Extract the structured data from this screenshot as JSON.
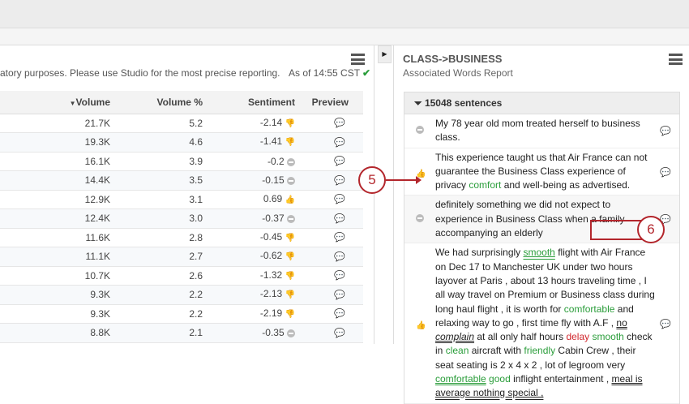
{
  "left": {
    "note": "atory purposes. Please use Studio for the most precise reporting.",
    "as_of": "As of 14:55 CST",
    "columns": [
      "Volume",
      "Volume %",
      "Sentiment",
      "Preview"
    ],
    "rows": [
      {
        "volume": "21.7K",
        "pct": "5.2",
        "sent": "-2.14",
        "s": "neg"
      },
      {
        "volume": "19.3K",
        "pct": "4.6",
        "sent": "-1.41",
        "s": "neg"
      },
      {
        "volume": "16.1K",
        "pct": "3.9",
        "sent": "-0.2",
        "s": "neu"
      },
      {
        "volume": "14.4K",
        "pct": "3.5",
        "sent": "-0.15",
        "s": "neu"
      },
      {
        "volume": "12.9K",
        "pct": "3.1",
        "sent": "0.69",
        "s": "pos"
      },
      {
        "volume": "12.4K",
        "pct": "3.0",
        "sent": "-0.37",
        "s": "neu"
      },
      {
        "volume": "11.6K",
        "pct": "2.8",
        "sent": "-0.45",
        "s": "neg"
      },
      {
        "volume": "11.1K",
        "pct": "2.7",
        "sent": "-0.62",
        "s": "neg"
      },
      {
        "volume": "10.7K",
        "pct": "2.6",
        "sent": "-1.32",
        "s": "neg"
      },
      {
        "volume": "9.3K",
        "pct": "2.2",
        "sent": "-2.13",
        "s": "neg"
      },
      {
        "volume": "9.3K",
        "pct": "2.2",
        "sent": "-2.19",
        "s": "neg"
      },
      {
        "volume": "8.8K",
        "pct": "2.1",
        "sent": "-0.35",
        "s": "neu"
      }
    ]
  },
  "right": {
    "title": "CLASS->BUSINESS",
    "subtitle": "Associated Words Report",
    "count": "15048 sentences",
    "s1": "My 78 year old mom treated herself to business class.",
    "s2a": "This experience taught us that Air France can not guarantee the Business Class experience of privacy ",
    "s2b": "comfort",
    "s2c": " and well-being as advertised.",
    "s3": "definitely something we did not expect to experience in Business Class when a family accompanying an elderly",
    "s4": [
      "We had surprisingly ",
      "smooth",
      " flight with Air France on Dec 17 to Manchester UK under two hours layover at Paris , about 13 hours traveling time , I all way travel on Premium or Business class during long haul flight , it is worth for ",
      "comfortable",
      " and relaxing way to go , first time fly with A.F , ",
      "no",
      " ",
      "complain",
      " at all only half hours ",
      "delay",
      " ",
      "smooth",
      " check in ",
      "clean",
      " aircraft with ",
      "friendly",
      " Cabin Crew , their seat seating is 2 x 4 x 2 , lot of legroom very ",
      "comfortable",
      " ",
      "good",
      " inflight entertainment , ",
      "meal is average nothing special ,"
    ]
  },
  "callouts": [
    "5",
    "6"
  ],
  "colors": {
    "positive": "#2a9d3a",
    "negative": "#d0262c",
    "callout": "#b3262c"
  }
}
